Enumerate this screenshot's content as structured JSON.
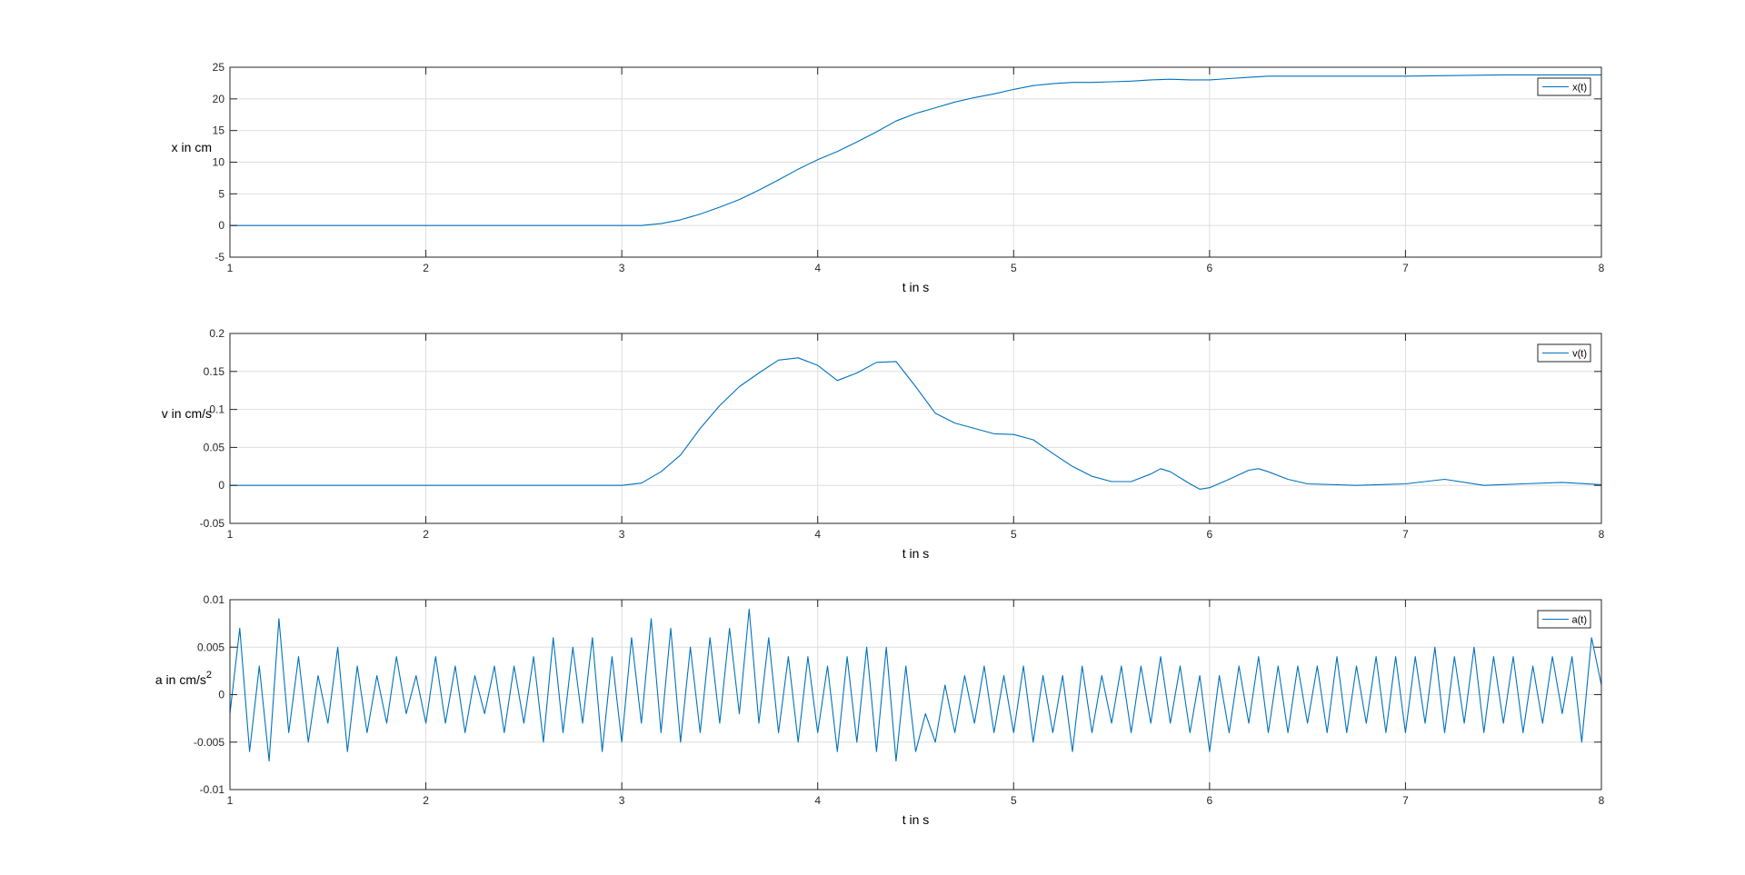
{
  "figure": {
    "background": "#ffffff",
    "line_color": "#0072bd",
    "grid_color": "#dedede",
    "axis_color": "#262626"
  },
  "chart_data": [
    {
      "type": "line",
      "xlabel": "t in s",
      "ylabel": "x in cm",
      "ylabel_sup": "",
      "xlim": [
        1,
        8
      ],
      "ylim": [
        -5,
        25
      ],
      "xticks": [
        1,
        2,
        3,
        4,
        5,
        6,
        7,
        8
      ],
      "xtick_labels": [
        "1",
        "2",
        "3",
        "4",
        "5",
        "6",
        "7",
        "8"
      ],
      "yticks": [
        -5,
        0,
        5,
        10,
        15,
        20,
        25
      ],
      "ytick_labels": [
        "-5",
        "0",
        "5",
        "10",
        "15",
        "20",
        "25"
      ],
      "grid": true,
      "legend": "top-right",
      "series": [
        {
          "name": "x(t)",
          "x": [
            1,
            2,
            3,
            3.1,
            3.2,
            3.3,
            3.4,
            3.5,
            3.6,
            3.7,
            3.8,
            3.9,
            4.0,
            4.1,
            4.2,
            4.3,
            4.4,
            4.5,
            4.6,
            4.7,
            4.8,
            4.9,
            5.0,
            5.1,
            5.2,
            5.3,
            5.4,
            5.5,
            5.6,
            5.7,
            5.8,
            5.9,
            6.0,
            6.1,
            6.2,
            6.3,
            6.5,
            7.0,
            7.5,
            8.0
          ],
          "values": [
            0,
            0,
            0,
            0,
            0.3,
            0.9,
            1.8,
            2.9,
            4.1,
            5.6,
            7.2,
            8.9,
            10.4,
            11.7,
            13.2,
            14.8,
            16.5,
            17.7,
            18.6,
            19.5,
            20.2,
            20.8,
            21.5,
            22.1,
            22.4,
            22.6,
            22.6,
            22.7,
            22.8,
            23.0,
            23.1,
            23.0,
            23.0,
            23.2,
            23.4,
            23.6,
            23.6,
            23.6,
            23.8,
            23.8
          ]
        }
      ]
    },
    {
      "type": "line",
      "xlabel": "t in s",
      "ylabel": "v in cm/s",
      "ylabel_sup": "",
      "xlim": [
        1,
        8
      ],
      "ylim": [
        -0.05,
        0.2
      ],
      "xticks": [
        1,
        2,
        3,
        4,
        5,
        6,
        7,
        8
      ],
      "xtick_labels": [
        "1",
        "2",
        "3",
        "4",
        "5",
        "6",
        "7",
        "8"
      ],
      "yticks": [
        -0.05,
        0,
        0.05,
        0.1,
        0.15,
        0.2
      ],
      "ytick_labels": [
        "-0.05",
        "0",
        "0.05",
        "0.1",
        "0.15",
        "0.2"
      ],
      "grid": true,
      "legend": "top-right",
      "series": [
        {
          "name": "v(t)",
          "x": [
            1,
            1.25,
            1.5,
            1.75,
            2,
            2.25,
            2.5,
            2.75,
            3,
            3.1,
            3.2,
            3.3,
            3.4,
            3.5,
            3.6,
            3.7,
            3.8,
            3.9,
            4.0,
            4.1,
            4.2,
            4.3,
            4.4,
            4.5,
            4.6,
            4.7,
            4.8,
            4.9,
            5.0,
            5.1,
            5.2,
            5.3,
            5.4,
            5.5,
            5.6,
            5.7,
            5.75,
            5.8,
            5.9,
            5.95,
            6.0,
            6.1,
            6.2,
            6.25,
            6.3,
            6.4,
            6.5,
            6.75,
            7.0,
            7.2,
            7.4,
            7.6,
            7.8,
            8.0
          ],
          "values": [
            0,
            0,
            0,
            0,
            0,
            0,
            0,
            0,
            0,
            0.003,
            0.018,
            0.04,
            0.075,
            0.105,
            0.13,
            0.148,
            0.165,
            0.168,
            0.158,
            0.138,
            0.148,
            0.162,
            0.163,
            0.13,
            0.095,
            0.082,
            0.075,
            0.068,
            0.067,
            0.06,
            0.042,
            0.025,
            0.012,
            0.005,
            0.005,
            0.015,
            0.022,
            0.018,
            0.002,
            -0.005,
            -0.003,
            0.008,
            0.02,
            0.022,
            0.018,
            0.008,
            0.002,
            0.0,
            0.002,
            0.008,
            0.0,
            0.002,
            0.004,
            0.001
          ]
        }
      ]
    },
    {
      "type": "line",
      "xlabel": "t in s",
      "ylabel": "a in cm/s",
      "ylabel_sup": "2",
      "xlim": [
        1,
        8
      ],
      "ylim": [
        -0.01,
        0.01
      ],
      "xticks": [
        1,
        2,
        3,
        4,
        5,
        6,
        7,
        8
      ],
      "xtick_labels": [
        "1",
        "2",
        "3",
        "4",
        "5",
        "6",
        "7",
        "8"
      ],
      "yticks": [
        -0.01,
        -0.005,
        0,
        0.005,
        0.01
      ],
      "ytick_labels": [
        "-0.01",
        "-0.005",
        "0",
        "0.005",
        "0.01"
      ],
      "grid": true,
      "legend": "top-right",
      "series": [
        {
          "name": "a(t)",
          "x": [
            1.0,
            1.05,
            1.1,
            1.15,
            1.2,
            1.25,
            1.3,
            1.35,
            1.4,
            1.45,
            1.5,
            1.55,
            1.6,
            1.65,
            1.7,
            1.75,
            1.8,
            1.85,
            1.9,
            1.95,
            2.0,
            2.05,
            2.1,
            2.15,
            2.2,
            2.25,
            2.3,
            2.35,
            2.4,
            2.45,
            2.5,
            2.55,
            2.6,
            2.65,
            2.7,
            2.75,
            2.8,
            2.85,
            2.9,
            2.95,
            3.0,
            3.05,
            3.1,
            3.15,
            3.2,
            3.25,
            3.3,
            3.35,
            3.4,
            3.45,
            3.5,
            3.55,
            3.6,
            3.65,
            3.7,
            3.75,
            3.8,
            3.85,
            3.9,
            3.95,
            4.0,
            4.05,
            4.1,
            4.15,
            4.2,
            4.25,
            4.3,
            4.35,
            4.4,
            4.45,
            4.5,
            4.55,
            4.6,
            4.65,
            4.7,
            4.75,
            4.8,
            4.85,
            4.9,
            4.95,
            5.0,
            5.05,
            5.1,
            5.15,
            5.2,
            5.25,
            5.3,
            5.35,
            5.4,
            5.45,
            5.5,
            5.55,
            5.6,
            5.65,
            5.7,
            5.75,
            5.8,
            5.85,
            5.9,
            5.95,
            6.0,
            6.05,
            6.1,
            6.15,
            6.2,
            6.25,
            6.3,
            6.35,
            6.4,
            6.45,
            6.5,
            6.55,
            6.6,
            6.65,
            6.7,
            6.75,
            6.8,
            6.85,
            6.9,
            6.95,
            7.0,
            7.05,
            7.1,
            7.15,
            7.2,
            7.25,
            7.3,
            7.35,
            7.4,
            7.45,
            7.5,
            7.55,
            7.6,
            7.65,
            7.7,
            7.75,
            7.8,
            7.85,
            7.9,
            7.95,
            8.0
          ],
          "values": [
            -0.002,
            0.007,
            -0.006,
            0.003,
            -0.007,
            0.008,
            -0.004,
            0.004,
            -0.005,
            0.002,
            -0.003,
            0.005,
            -0.006,
            0.003,
            -0.004,
            0.002,
            -0.003,
            0.004,
            -0.002,
            0.002,
            -0.003,
            0.004,
            -0.003,
            0.003,
            -0.004,
            0.002,
            -0.002,
            0.003,
            -0.004,
            0.003,
            -0.003,
            0.004,
            -0.005,
            0.006,
            -0.004,
            0.005,
            -0.003,
            0.006,
            -0.006,
            0.004,
            -0.005,
            0.006,
            -0.003,
            0.008,
            -0.004,
            0.007,
            -0.005,
            0.005,
            -0.004,
            0.006,
            -0.003,
            0.007,
            -0.002,
            0.009,
            -0.003,
            0.006,
            -0.004,
            0.004,
            -0.005,
            0.004,
            -0.004,
            0.003,
            -0.006,
            0.004,
            -0.005,
            0.005,
            -0.006,
            0.005,
            -0.007,
            0.003,
            -0.006,
            -0.002,
            -0.005,
            0.001,
            -0.004,
            0.002,
            -0.003,
            0.003,
            -0.004,
            0.002,
            -0.004,
            0.003,
            -0.005,
            0.002,
            -0.004,
            0.002,
            -0.006,
            0.003,
            -0.004,
            0.002,
            -0.003,
            0.003,
            -0.004,
            0.003,
            -0.003,
            0.004,
            -0.003,
            0.003,
            -0.004,
            0.002,
            -0.006,
            0.002,
            -0.004,
            0.003,
            -0.003,
            0.004,
            -0.004,
            0.003,
            -0.004,
            0.003,
            -0.003,
            0.003,
            -0.004,
            0.004,
            -0.004,
            0.003,
            -0.003,
            0.004,
            -0.004,
            0.004,
            -0.004,
            0.004,
            -0.003,
            0.005,
            -0.004,
            0.004,
            -0.003,
            0.005,
            -0.004,
            0.004,
            -0.003,
            0.004,
            -0.004,
            0.003,
            -0.003,
            0.004,
            -0.002,
            0.004,
            -0.005,
            0.006,
            0.001
          ]
        }
      ]
    }
  ]
}
